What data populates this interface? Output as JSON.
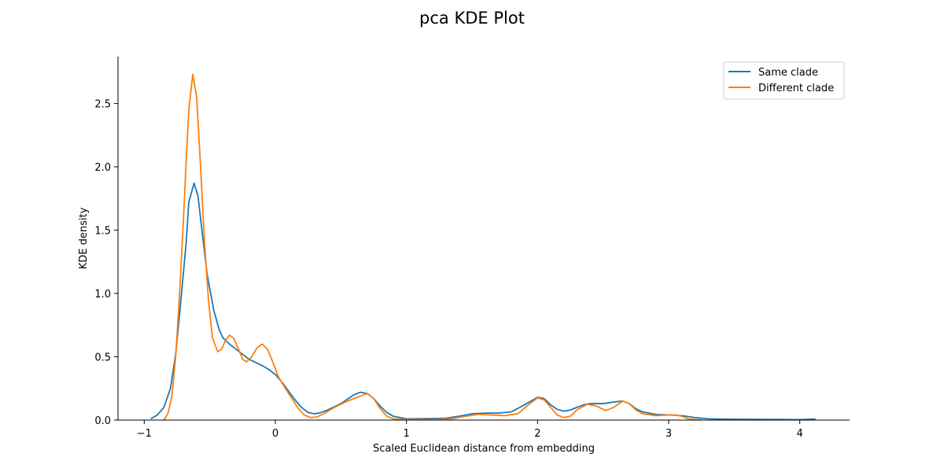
{
  "chart_data": {
    "type": "line",
    "title": "pca KDE Plot",
    "xlabel": "Scaled Euclidean distance from embedding",
    "ylabel": "KDE density",
    "xlim": [
      -1.2,
      4.38
    ],
    "ylim": [
      0,
      2.87
    ],
    "xticks": [
      -1,
      0,
      1,
      2,
      3,
      4
    ],
    "xtick_labels": [
      "−1",
      "0",
      "1",
      "2",
      "3",
      "4"
    ],
    "yticks": [
      0.0,
      0.5,
      1.0,
      1.5,
      2.0,
      2.5
    ],
    "ytick_labels": [
      "0.0",
      "0.5",
      "1.0",
      "1.5",
      "2.0",
      "2.5"
    ],
    "grid": false,
    "legend_position": "top-right",
    "series": [
      {
        "name": "Same clade",
        "color": "#1f77b4",
        "points": [
          [
            -0.95,
            0.01
          ],
          [
            -0.9,
            0.04
          ],
          [
            -0.85,
            0.1
          ],
          [
            -0.8,
            0.25
          ],
          [
            -0.76,
            0.52
          ],
          [
            -0.72,
            0.95
          ],
          [
            -0.68,
            1.4
          ],
          [
            -0.66,
            1.72
          ],
          [
            -0.62,
            1.87
          ],
          [
            -0.59,
            1.77
          ],
          [
            -0.56,
            1.5
          ],
          [
            -0.52,
            1.15
          ],
          [
            -0.47,
            0.87
          ],
          [
            -0.43,
            0.72
          ],
          [
            -0.4,
            0.65
          ],
          [
            -0.35,
            0.6
          ],
          [
            -0.3,
            0.56
          ],
          [
            -0.25,
            0.52
          ],
          [
            -0.2,
            0.48
          ],
          [
            -0.1,
            0.43
          ],
          [
            -0.05,
            0.4
          ],
          [
            0.0,
            0.36
          ],
          [
            0.05,
            0.3
          ],
          [
            0.1,
            0.23
          ],
          [
            0.15,
            0.16
          ],
          [
            0.2,
            0.1
          ],
          [
            0.25,
            0.06
          ],
          [
            0.3,
            0.05
          ],
          [
            0.35,
            0.06
          ],
          [
            0.4,
            0.08
          ],
          [
            0.5,
            0.13
          ],
          [
            0.6,
            0.2
          ],
          [
            0.65,
            0.22
          ],
          [
            0.7,
            0.21
          ],
          [
            0.75,
            0.17
          ],
          [
            0.8,
            0.11
          ],
          [
            0.85,
            0.06
          ],
          [
            0.9,
            0.03
          ],
          [
            0.95,
            0.02
          ],
          [
            1.0,
            0.01
          ],
          [
            1.2,
            0.012
          ],
          [
            1.3,
            0.015
          ],
          [
            1.4,
            0.03
          ],
          [
            1.5,
            0.05
          ],
          [
            1.6,
            0.055
          ],
          [
            1.7,
            0.055
          ],
          [
            1.8,
            0.065
          ],
          [
            1.9,
            0.12
          ],
          [
            2.0,
            0.18
          ],
          [
            2.05,
            0.17
          ],
          [
            2.1,
            0.12
          ],
          [
            2.15,
            0.085
          ],
          [
            2.2,
            0.07
          ],
          [
            2.25,
            0.08
          ],
          [
            2.35,
            0.12
          ],
          [
            2.4,
            0.13
          ],
          [
            2.5,
            0.13
          ],
          [
            2.6,
            0.145
          ],
          [
            2.65,
            0.15
          ],
          [
            2.7,
            0.13
          ],
          [
            2.75,
            0.09
          ],
          [
            2.8,
            0.065
          ],
          [
            2.9,
            0.045
          ],
          [
            3.0,
            0.04
          ],
          [
            3.1,
            0.035
          ],
          [
            3.2,
            0.02
          ],
          [
            3.3,
            0.01
          ],
          [
            3.5,
            0.006
          ],
          [
            3.8,
            0.005
          ],
          [
            4.0,
            0.004
          ],
          [
            4.12,
            0.008
          ]
        ]
      },
      {
        "name": "Different clade",
        "color": "#ff7f0e",
        "points": [
          [
            -0.85,
            0.0
          ],
          [
            -0.82,
            0.05
          ],
          [
            -0.79,
            0.18
          ],
          [
            -0.76,
            0.5
          ],
          [
            -0.73,
            1.0
          ],
          [
            -0.7,
            1.6
          ],
          [
            -0.68,
            2.05
          ],
          [
            -0.66,
            2.45
          ],
          [
            -0.63,
            2.73
          ],
          [
            -0.6,
            2.55
          ],
          [
            -0.57,
            2.0
          ],
          [
            -0.54,
            1.4
          ],
          [
            -0.51,
            0.95
          ],
          [
            -0.48,
            0.65
          ],
          [
            -0.44,
            0.54
          ],
          [
            -0.41,
            0.56
          ],
          [
            -0.38,
            0.63
          ],
          [
            -0.35,
            0.67
          ],
          [
            -0.32,
            0.65
          ],
          [
            -0.28,
            0.56
          ],
          [
            -0.25,
            0.48
          ],
          [
            -0.22,
            0.46
          ],
          [
            -0.18,
            0.5
          ],
          [
            -0.14,
            0.57
          ],
          [
            -0.1,
            0.6
          ],
          [
            -0.06,
            0.56
          ],
          [
            -0.02,
            0.46
          ],
          [
            0.02,
            0.35
          ],
          [
            0.07,
            0.26
          ],
          [
            0.12,
            0.18
          ],
          [
            0.17,
            0.1
          ],
          [
            0.22,
            0.04
          ],
          [
            0.27,
            0.02
          ],
          [
            0.32,
            0.025
          ],
          [
            0.37,
            0.05
          ],
          [
            0.45,
            0.1
          ],
          [
            0.55,
            0.15
          ],
          [
            0.65,
            0.19
          ],
          [
            0.7,
            0.21
          ],
          [
            0.75,
            0.17
          ],
          [
            0.8,
            0.09
          ],
          [
            0.85,
            0.03
          ],
          [
            0.9,
            0.01
          ],
          [
            1.0,
            0.005
          ],
          [
            1.2,
            0.004
          ],
          [
            1.35,
            0.01
          ],
          [
            1.45,
            0.03
          ],
          [
            1.55,
            0.045
          ],
          [
            1.65,
            0.04
          ],
          [
            1.75,
            0.035
          ],
          [
            1.85,
            0.05
          ],
          [
            1.93,
            0.12
          ],
          [
            2.0,
            0.175
          ],
          [
            2.05,
            0.16
          ],
          [
            2.1,
            0.1
          ],
          [
            2.15,
            0.04
          ],
          [
            2.2,
            0.02
          ],
          [
            2.25,
            0.03
          ],
          [
            2.3,
            0.08
          ],
          [
            2.38,
            0.125
          ],
          [
            2.45,
            0.11
          ],
          [
            2.52,
            0.075
          ],
          [
            2.58,
            0.1
          ],
          [
            2.65,
            0.15
          ],
          [
            2.7,
            0.13
          ],
          [
            2.75,
            0.08
          ],
          [
            2.8,
            0.05
          ],
          [
            2.9,
            0.035
          ],
          [
            3.0,
            0.04
          ],
          [
            3.05,
            0.04
          ],
          [
            3.1,
            0.03
          ],
          [
            3.15,
            0.01
          ],
          [
            3.25,
            0.0
          ]
        ]
      }
    ]
  }
}
